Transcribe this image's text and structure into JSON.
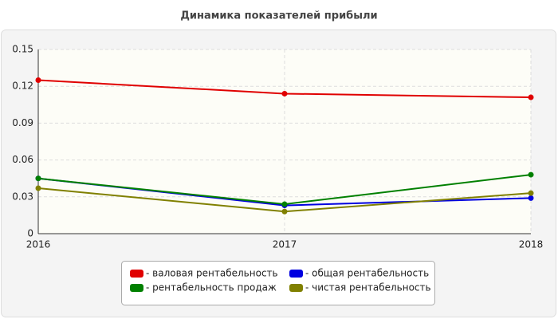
{
  "chart_data": {
    "type": "line",
    "title": "Динамика показателей прибыли",
    "x": [
      2016,
      2017,
      2018
    ],
    "xlim": [
      2016,
      2018
    ],
    "xticks": [
      2016,
      2017,
      2018
    ],
    "ylim": [
      0,
      0.15
    ],
    "yticks": [
      0,
      0.03,
      0.06,
      0.09,
      0.12,
      0.15
    ],
    "grid": true,
    "legend": "bottom",
    "series": [
      {
        "name": "- валовая рентабельность",
        "color": "#e00000",
        "values": [
          0.125,
          0.114,
          0.111
        ]
      },
      {
        "name": "- общая рентабельность",
        "color": "#0000e0",
        "values": [
          0.045,
          0.023,
          0.029
        ]
      },
      {
        "name": "- рентабельность продаж",
        "color": "#008000",
        "values": [
          0.045,
          0.024,
          0.048
        ]
      },
      {
        "name": "- чистая рентабельность",
        "color": "#808000",
        "values": [
          0.037,
          0.018,
          0.033
        ]
      }
    ]
  }
}
